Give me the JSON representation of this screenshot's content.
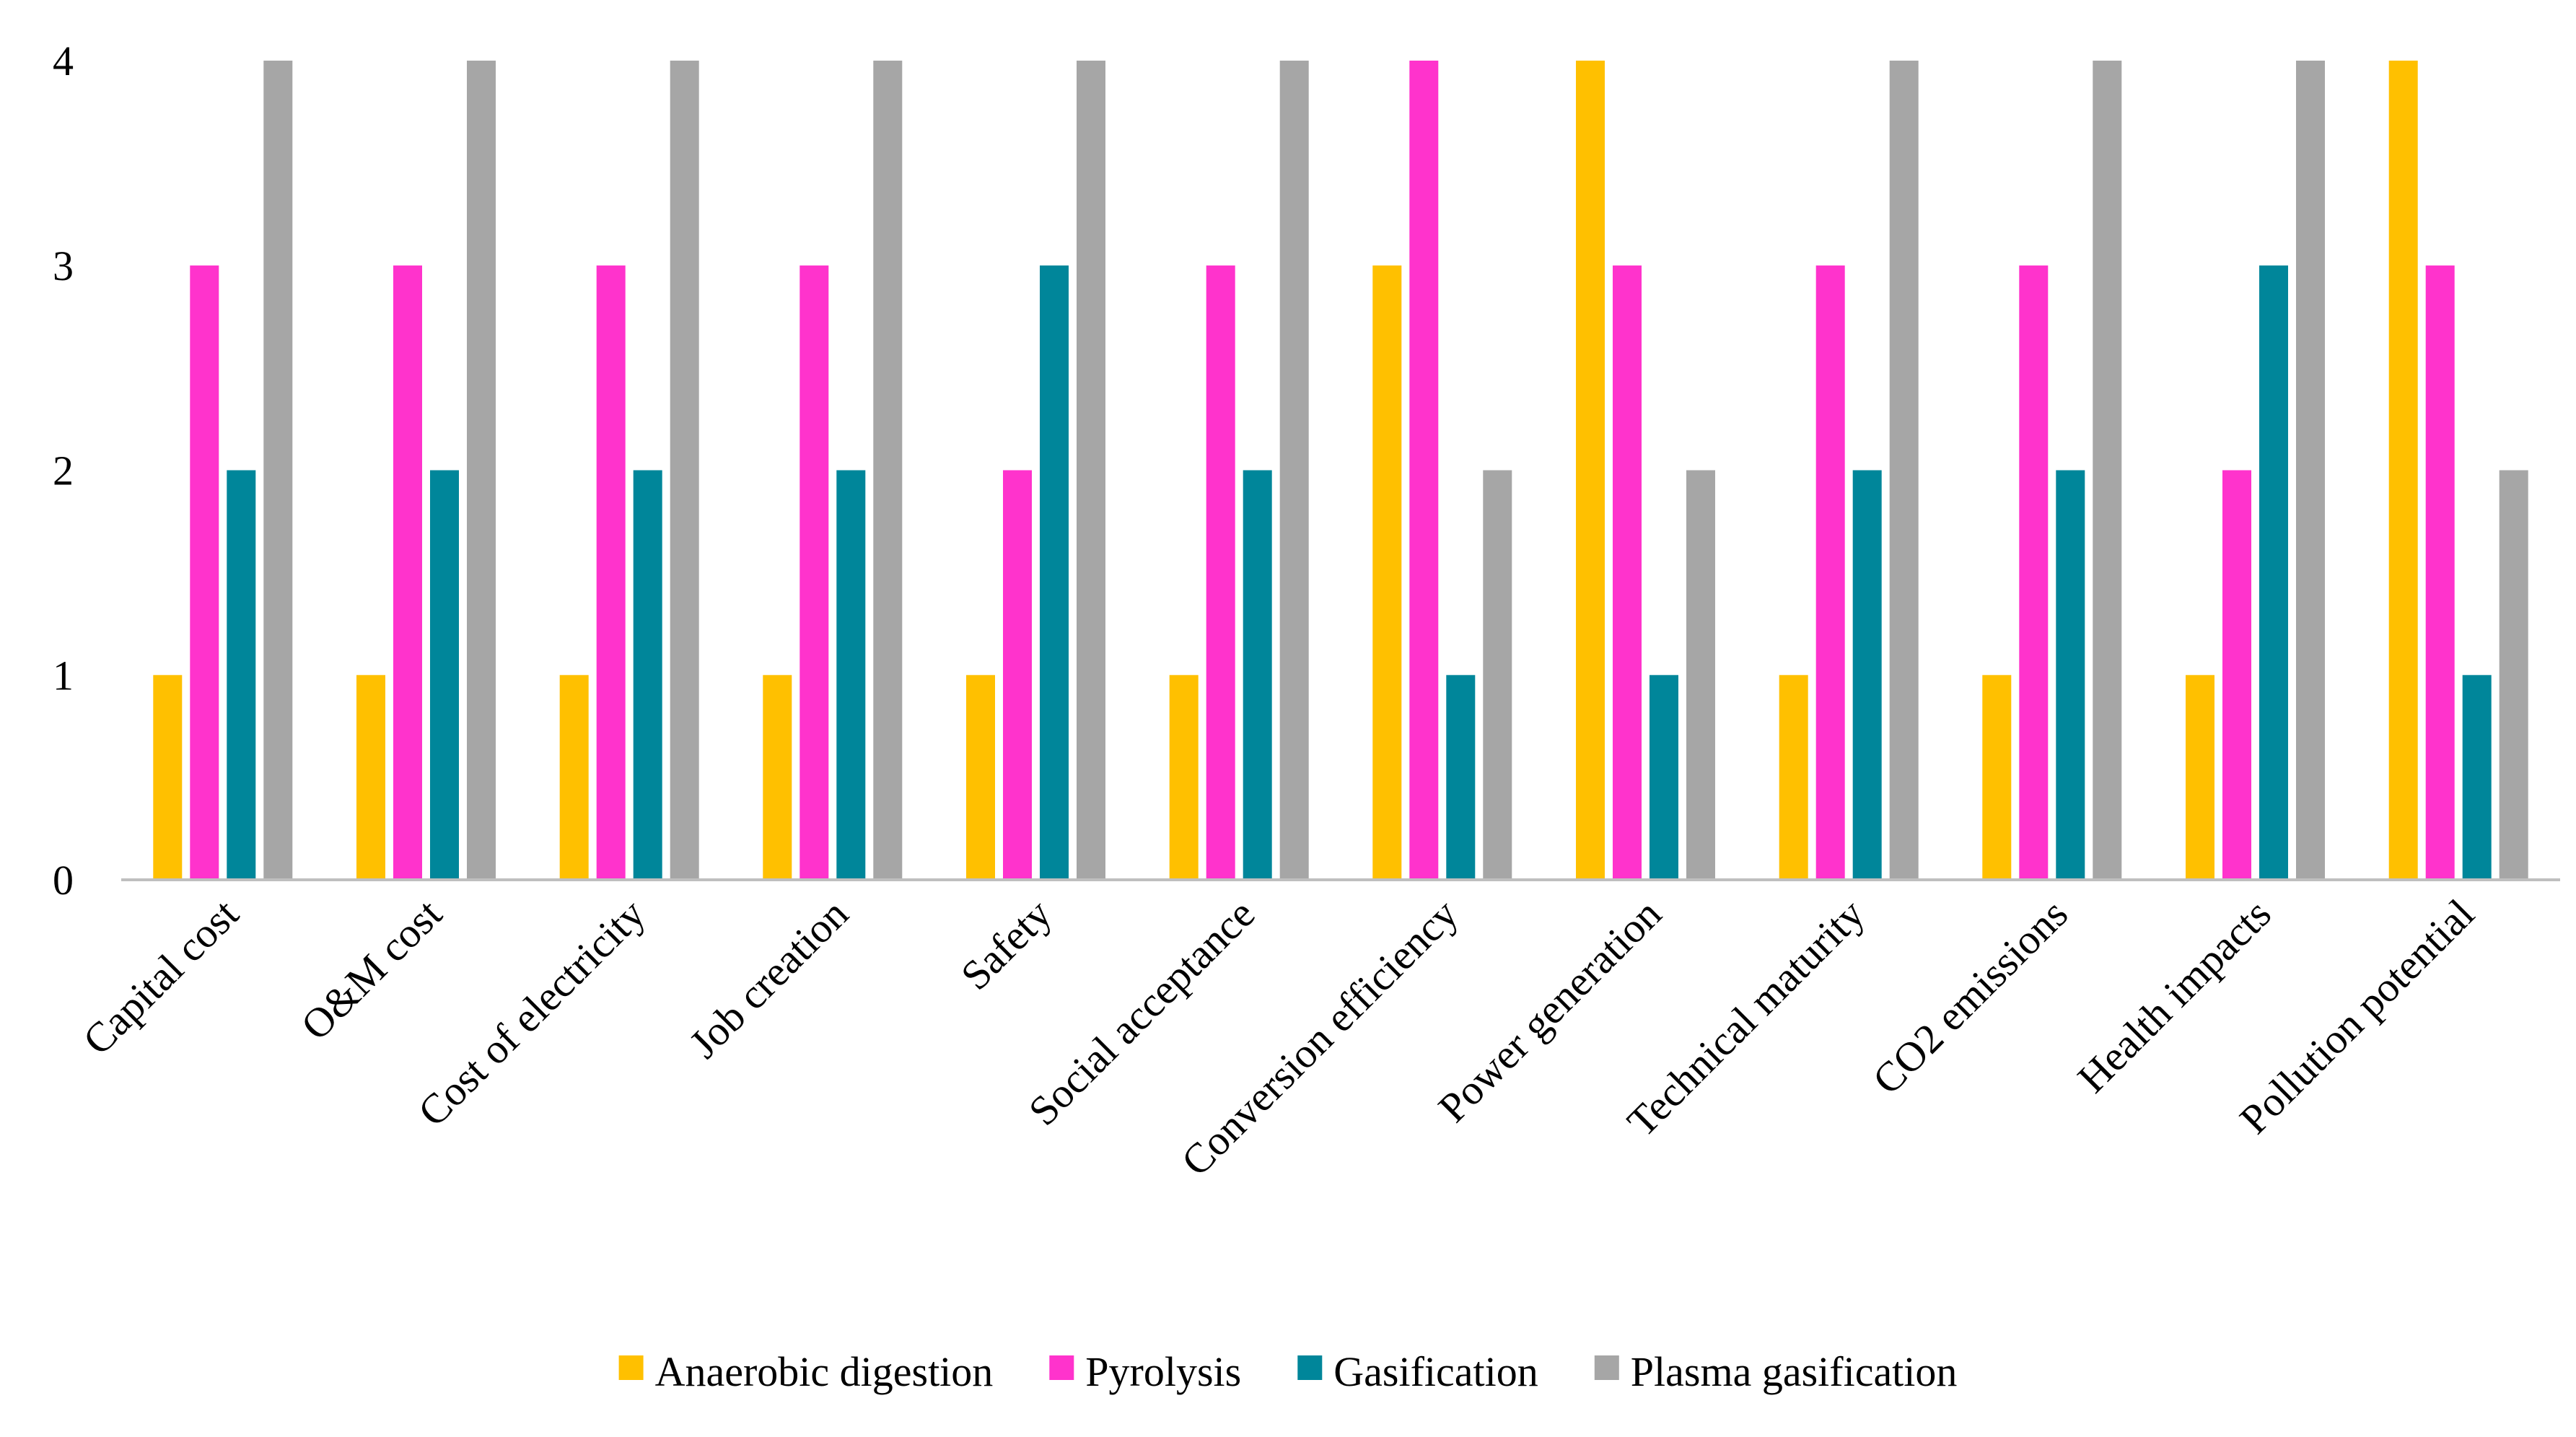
{
  "chart_data": {
    "type": "bar",
    "categories": [
      "Capital cost",
      "O&M cost",
      "Cost of electricity",
      "Job creation",
      "Safety",
      "Social acceptance",
      "Conversion efficiency",
      "Power generation",
      "Technical maturity",
      "CO2 emissions",
      "Health impacts",
      "Pollution potential"
    ],
    "series": [
      {
        "name": "Anaerobic digestion",
        "color": "#FFC000",
        "values": [
          1,
          1,
          1,
          1,
          1,
          1,
          3,
          4,
          1,
          1,
          1,
          4
        ]
      },
      {
        "name": "Pyrolysis",
        "color": "#FF33CC",
        "values": [
          3,
          3,
          3,
          3,
          2,
          3,
          4,
          3,
          3,
          3,
          2,
          3
        ]
      },
      {
        "name": "Gasification",
        "color": "#00869A",
        "values": [
          2,
          2,
          2,
          2,
          3,
          2,
          1,
          1,
          2,
          2,
          3,
          1
        ]
      },
      {
        "name": "Plasma gasification",
        "color": "#A6A6A6",
        "values": [
          4,
          4,
          4,
          4,
          4,
          4,
          2,
          2,
          4,
          4,
          4,
          2
        ]
      }
    ],
    "yticks": [
      "0",
      "1",
      "2",
      "3",
      "4"
    ],
    "ylim": [
      0,
      4
    ],
    "grid": false,
    "legend_position": "bottom",
    "title": "",
    "xlabel": "",
    "ylabel": ""
  }
}
